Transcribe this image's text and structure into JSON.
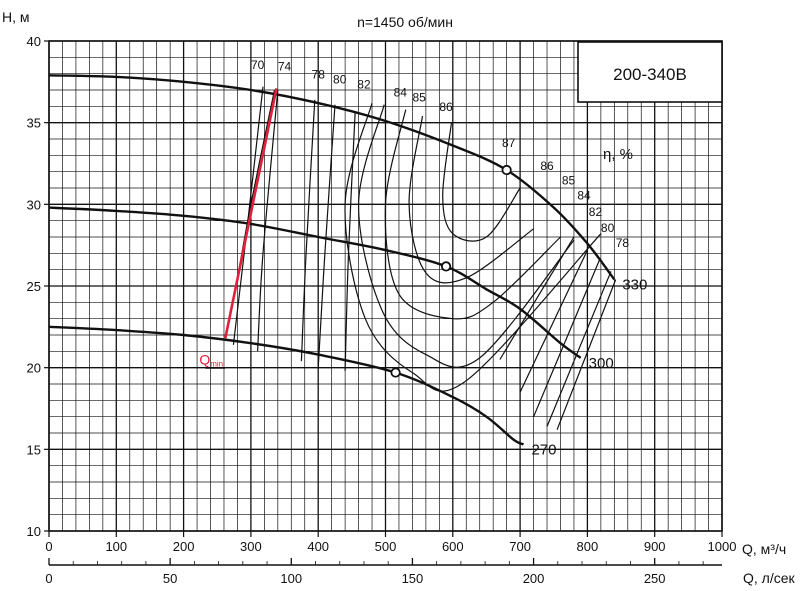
{
  "chart_data": {
    "type": "line",
    "title": "n=1450 об/мин",
    "model": "200-340B",
    "ylabel": "H, м",
    "xlabel": "Q, м³/ч",
    "x2label": "Q, л/сек",
    "efficiency_axis_label": "η, %",
    "xlim": [
      0,
      1000
    ],
    "ylim": [
      10,
      40
    ],
    "x2lim": [
      0,
      277.78
    ],
    "grid": true,
    "x_ticks": [
      0,
      100,
      200,
      300,
      400,
      500,
      600,
      700,
      800,
      900,
      1000
    ],
    "x2_ticks": [
      0,
      50,
      100,
      150,
      200,
      250
    ],
    "y_ticks": [
      10,
      15,
      20,
      25,
      30,
      35,
      40
    ],
    "impeller_curves": [
      {
        "label": "330",
        "points": [
          [
            0,
            37.9
          ],
          [
            100,
            37.8
          ],
          [
            200,
            37.5
          ],
          [
            300,
            37.0
          ],
          [
            400,
            36.2
          ],
          [
            500,
            35.1
          ],
          [
            600,
            33.6
          ],
          [
            680,
            32.1
          ],
          [
            750,
            29.8
          ],
          [
            800,
            27.6
          ],
          [
            840,
            25.4
          ]
        ]
      },
      {
        "label": "300",
        "points": [
          [
            0,
            29.8
          ],
          [
            100,
            29.6
          ],
          [
            200,
            29.3
          ],
          [
            300,
            28.8
          ],
          [
            400,
            28.0
          ],
          [
            500,
            27.2
          ],
          [
            590,
            26.2
          ],
          [
            650,
            24.8
          ],
          [
            700,
            23.6
          ],
          [
            760,
            21.5
          ],
          [
            790,
            20.6
          ]
        ]
      },
      {
        "label": "270",
        "points": [
          [
            0,
            22.5
          ],
          [
            100,
            22.3
          ],
          [
            200,
            22.0
          ],
          [
            300,
            21.5
          ],
          [
            400,
            20.8
          ],
          [
            515,
            19.7
          ],
          [
            600,
            18.2
          ],
          [
            650,
            17.0
          ],
          [
            690,
            15.6
          ],
          [
            705,
            15.3
          ]
        ]
      }
    ],
    "efficiency_labels": [
      "70",
      "74",
      "78",
      "80",
      "82",
      "84",
      "85",
      "86",
      "87",
      "86",
      "85",
      "84",
      "82",
      "80",
      "78"
    ],
    "bep_points": [
      [
        680,
        32.1
      ],
      [
        590,
        26.2
      ],
      [
        515,
        19.7
      ]
    ],
    "qmin_line": {
      "label": "Qmin",
      "label_main": "Q",
      "label_sub": "min",
      "points": [
        [
          262,
          21.8
        ],
        [
          338,
          37.1
        ]
      ]
    }
  }
}
